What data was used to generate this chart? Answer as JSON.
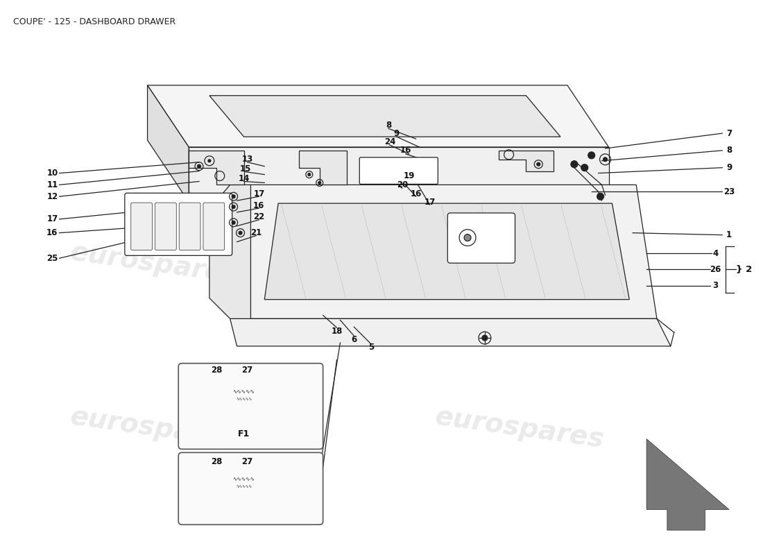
{
  "title": "COUPE' - 125 - DASHBOARD DRAWER",
  "bg_color": "#ffffff",
  "watermark_text": "eurospares",
  "watermark_color": "#cccccc",
  "title_fontsize": 9,
  "title_color": "#222222",
  "label_fontsize": 8.5,
  "label_color": "#111111",
  "line_color": "#222222"
}
